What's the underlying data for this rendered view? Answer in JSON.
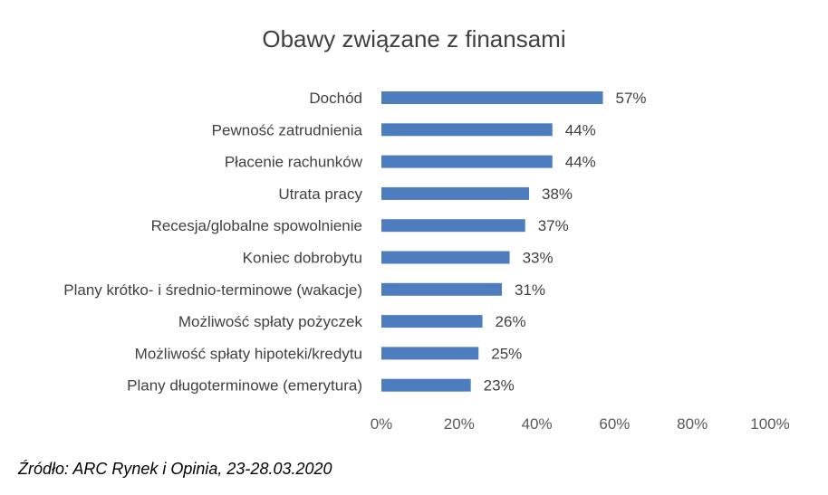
{
  "chart_data": {
    "type": "bar",
    "orientation": "horizontal",
    "title": "Obawy związane z finansami",
    "categories": [
      "Dochód",
      "Pewność zatrudnienia",
      "Płacenie rachunków",
      "Utrata pracy",
      "Recesja/globalne spowolnienie",
      "Koniec dobrobytu",
      "Plany krótko- i średnio-terminowe (wakacje)",
      "Możliwość spłaty pożyczek",
      "Możliwość spłaty hipoteki/kredytu",
      "Plany długoterminowe (emerytura)"
    ],
    "values": [
      57,
      44,
      44,
      38,
      37,
      33,
      31,
      26,
      25,
      23
    ],
    "value_labels": [
      "57%",
      "44%",
      "44%",
      "38%",
      "37%",
      "33%",
      "31%",
      "26%",
      "25%",
      "23%"
    ],
    "xlim": [
      0,
      100
    ],
    "xticks": [
      0,
      20,
      40,
      60,
      80,
      100
    ],
    "xtick_labels": [
      "0%",
      "20%",
      "40%",
      "60%",
      "80%",
      "100%"
    ],
    "xlabel": "",
    "ylabel": "",
    "grid": false,
    "legend": false,
    "bar_color": "#4e7dbf"
  },
  "source": "Źródło: ARC Rynek i Opinia,  23-28.03.2020"
}
